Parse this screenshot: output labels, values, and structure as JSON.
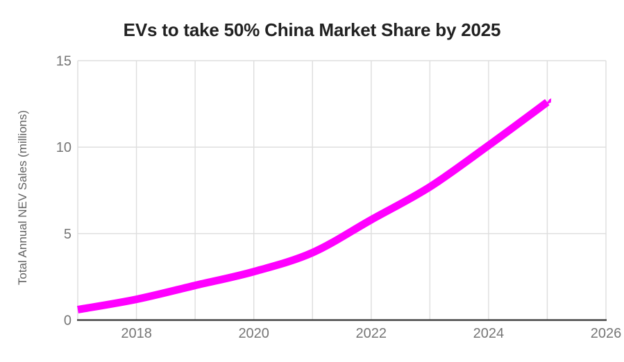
{
  "chart_data": {
    "type": "line",
    "title": "EVs to take 50% China Market Share by 2025",
    "xlabel": "",
    "ylabel": "Total Annual NEV Sales (millions)",
    "x": [
      2017,
      2018,
      2019,
      2020,
      2021,
      2022,
      2023,
      2024,
      2025
    ],
    "values": [
      0.6,
      1.2,
      2.0,
      2.8,
      3.9,
      5.8,
      7.7,
      10.1,
      12.6
    ],
    "xlim": [
      2017,
      2026
    ],
    "ylim": [
      0,
      15
    ],
    "x_tick_years": [
      2018,
      2020,
      2022,
      2024,
      2026
    ],
    "x_tick_labels": [
      "2018",
      "2020",
      "2022",
      "2024",
      "2026"
    ],
    "y_ticks": [
      0,
      5,
      10,
      15
    ],
    "x_gridline_step_years": 1,
    "grid": "on",
    "legend": "none",
    "line_color": "#FF00FF"
  },
  "colors": {
    "line": "#FF00FF",
    "title_text": "#212121",
    "tick_text": "#757575",
    "axis_title_text": "#616161",
    "gridline": "#DDDDDD",
    "axis_line": "#333333",
    "background": "#FFFFFF"
  }
}
